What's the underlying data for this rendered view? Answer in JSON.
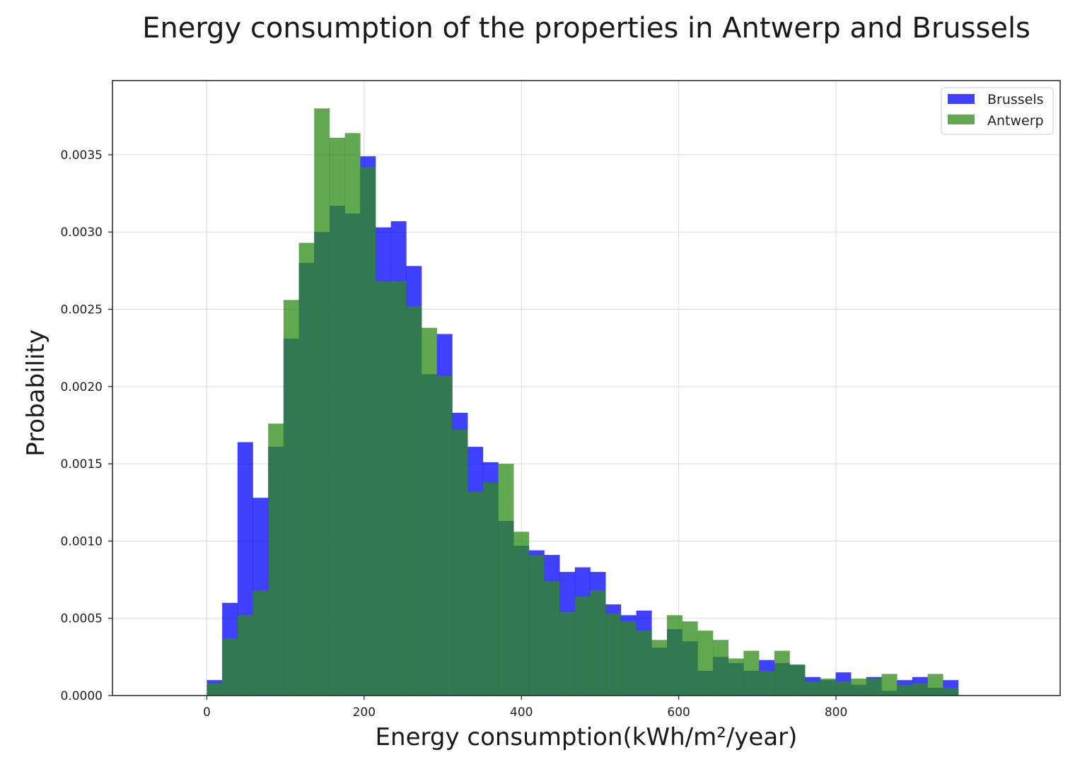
{
  "chart_data": {
    "type": "histogram",
    "title": "Energy consumption of the properties in Antwerp and Brussels",
    "xlabel": "Energy consumption(kWh/m²/year)",
    "ylabel": "Probability",
    "xlim": [
      -120,
      1085
    ],
    "ylim": [
      0,
      0.00398
    ],
    "grid": true,
    "legend_position": "top-right",
    "bin_start": 0,
    "bin_width": 19.5,
    "x_ticks": [
      0,
      200,
      400,
      600,
      800
    ],
    "x_tick_labels": [
      "0",
      "200",
      "400",
      "600",
      "800"
    ],
    "y_ticks": [
      0,
      0.0005,
      0.001,
      0.0015,
      0.002,
      0.0025,
      0.003,
      0.0035
    ],
    "y_tick_labels": [
      "0.0000",
      "0.0005",
      "0.0010",
      "0.0015",
      "0.0020",
      "0.0025",
      "0.0030",
      "0.0035"
    ],
    "series": [
      {
        "name": "Brussels",
        "color": "#0000ff",
        "opacity": 0.75,
        "values": [
          0.0001,
          0.0006,
          0.00164,
          0.00128,
          0.00161,
          0.00231,
          0.0028,
          0.003,
          0.00317,
          0.00312,
          0.00349,
          0.00303,
          0.00307,
          0.00278,
          0.00208,
          0.00234,
          0.00183,
          0.00161,
          0.00151,
          0.00113,
          0.00097,
          0.00094,
          0.00091,
          0.0008,
          0.00083,
          0.0008,
          0.00059,
          0.00052,
          0.00055,
          0.00031,
          0.00043,
          0.00035,
          0.00016,
          0.00025,
          0.00021,
          0.00016,
          0.00023,
          0.00021,
          0.0002,
          0.00012,
          0.0001,
          0.00015,
          7e-05,
          0.00012,
          3e-05,
          0.0001,
          0.00012,
          5e-05,
          0.0001
        ]
      },
      {
        "name": "Antwerp",
        "color": "#2e8b15",
        "opacity": 0.75,
        "values": [
          8e-05,
          0.00037,
          0.00052,
          0.00068,
          0.00176,
          0.00256,
          0.00293,
          0.0038,
          0.00361,
          0.00364,
          0.00342,
          0.00268,
          0.00268,
          0.00252,
          0.00238,
          0.00207,
          0.00172,
          0.00132,
          0.00138,
          0.0015,
          0.00106,
          0.00091,
          0.00074,
          0.00054,
          0.00064,
          0.00068,
          0.00053,
          0.00048,
          0.00042,
          0.00036,
          0.00052,
          0.00048,
          0.00042,
          0.00036,
          0.00024,
          0.00029,
          0.00016,
          0.00029,
          0.0002,
          9e-05,
          0.00011,
          9e-05,
          0.00011,
          0.00011,
          0.00014,
          7e-05,
          8e-05,
          0.00014,
          5e-05
        ]
      }
    ]
  }
}
